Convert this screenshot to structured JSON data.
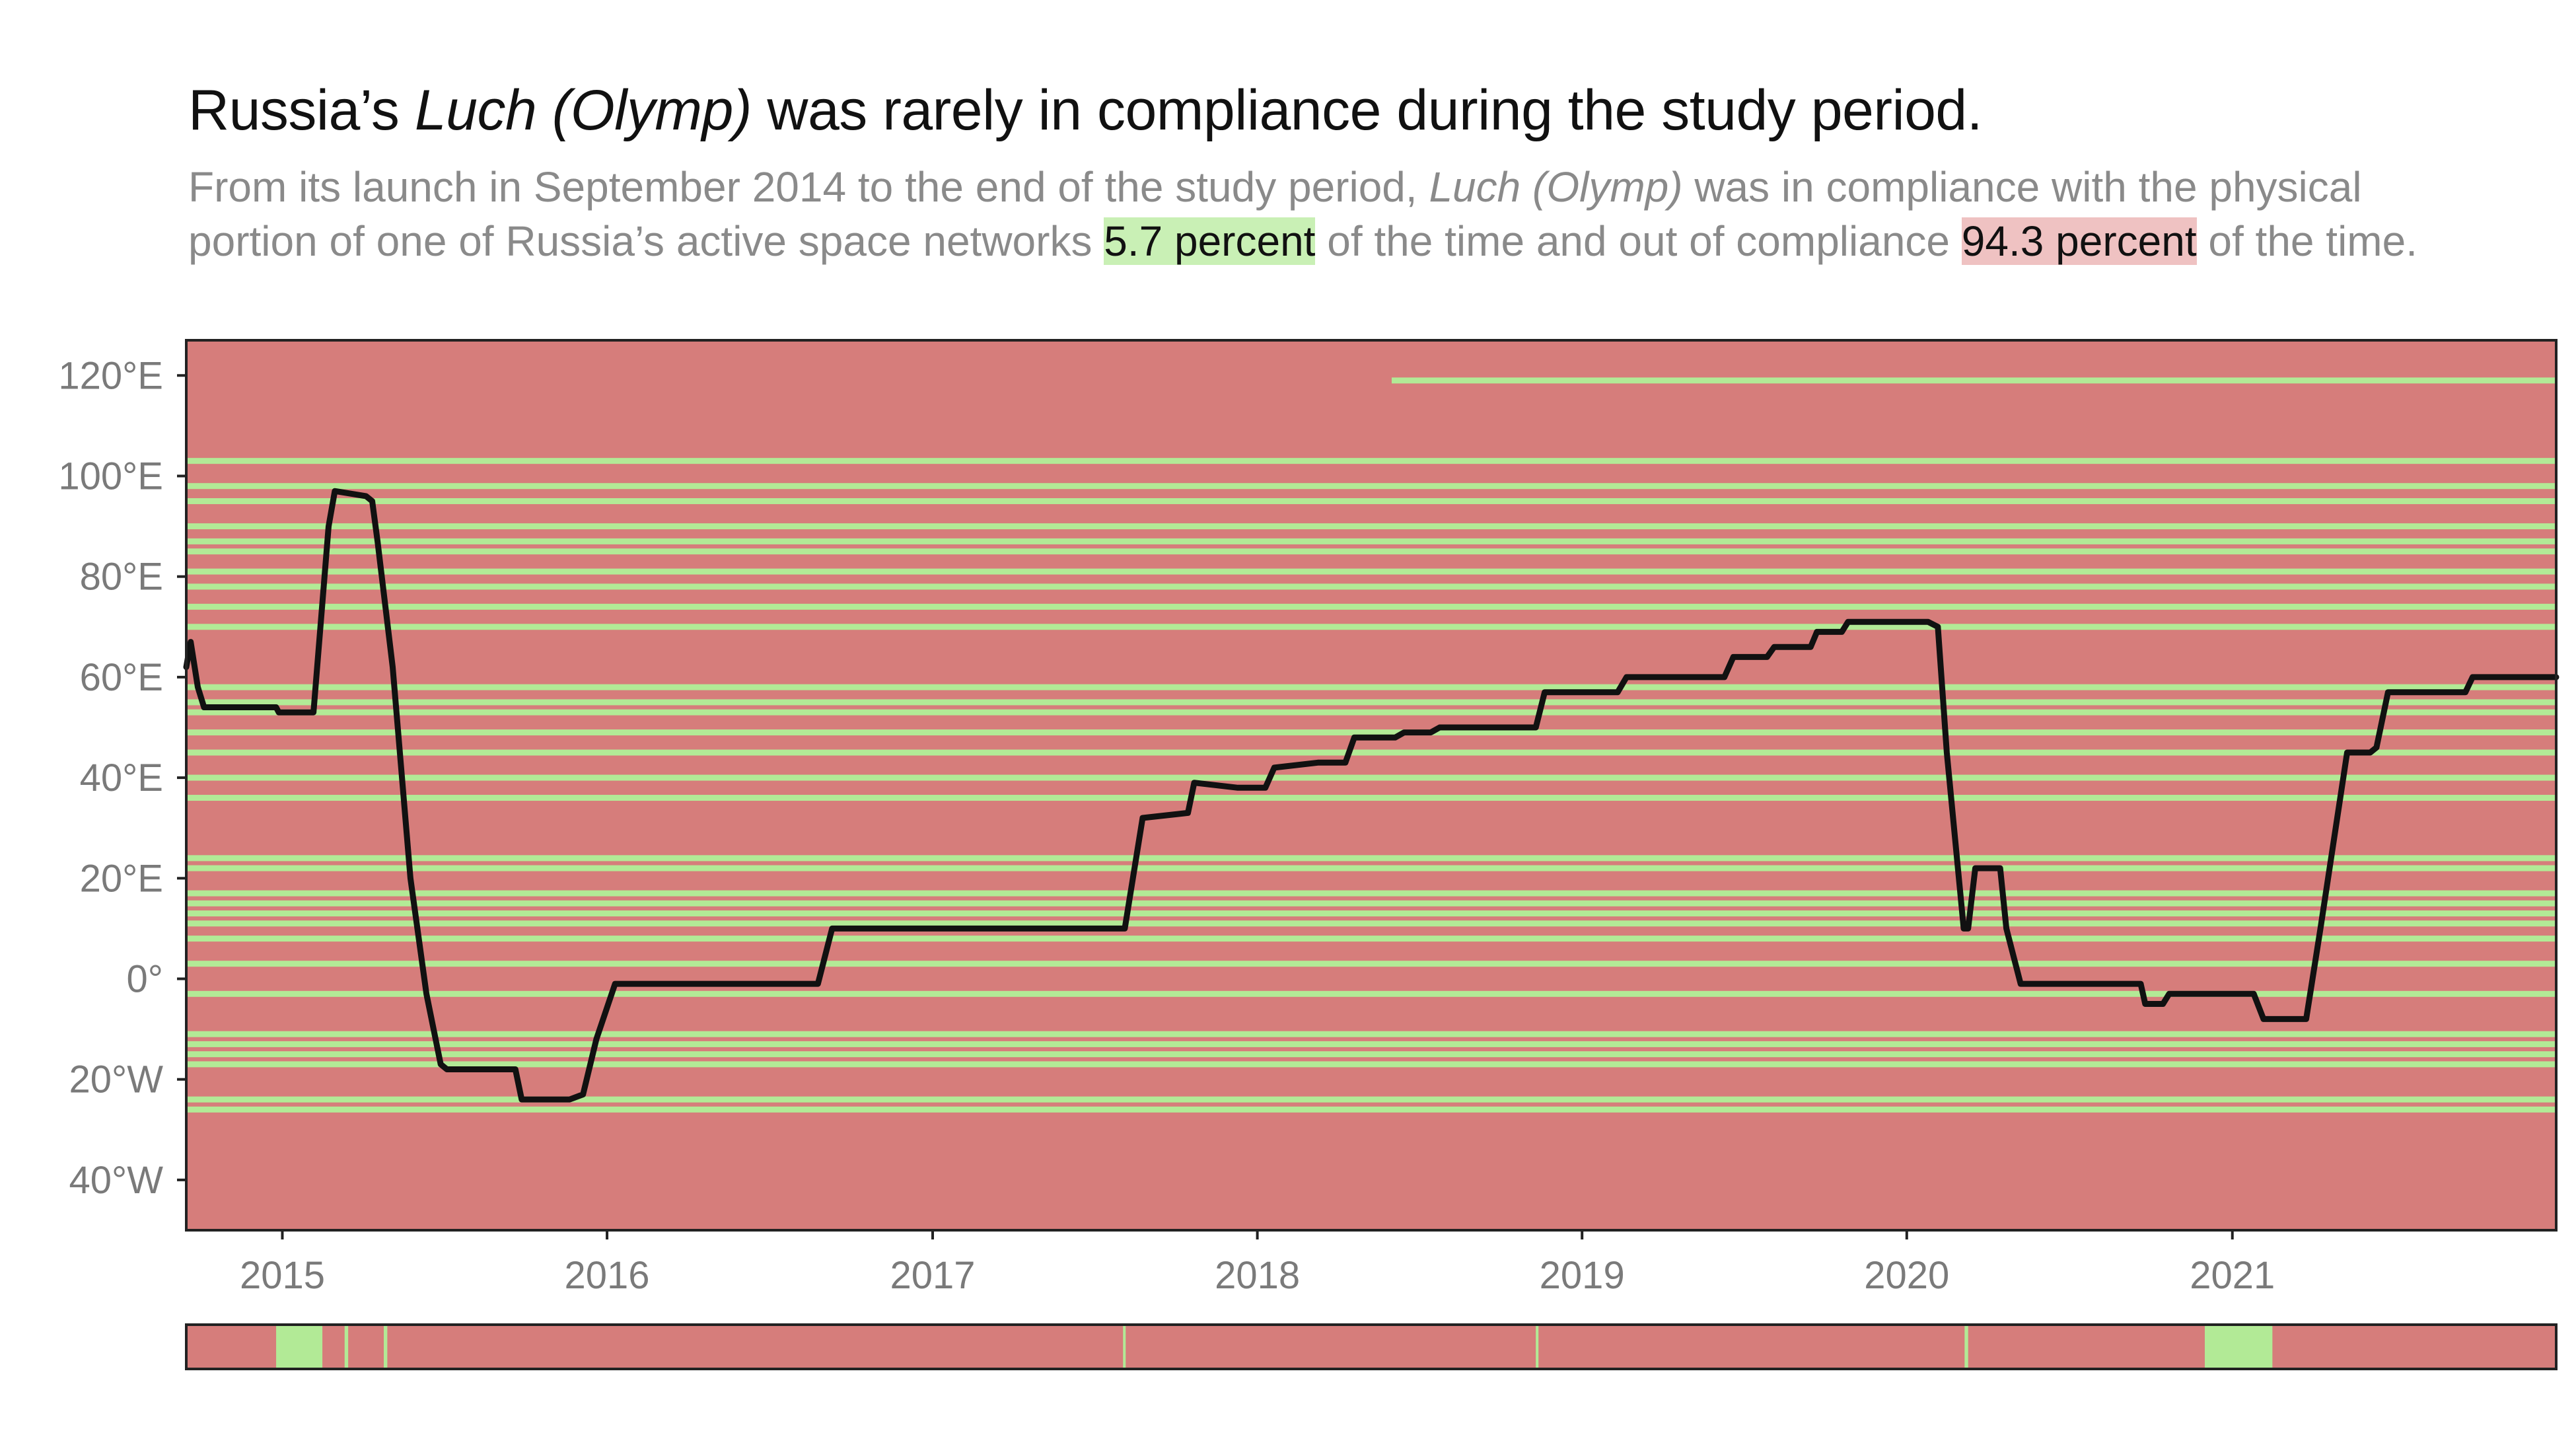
{
  "title": {
    "pre": "Russia’s ",
    "em": "Luch (Olymp)",
    "post": " was rarely in compliance during the study period."
  },
  "subtitle": {
    "line1_pre": "From its launch in September 2014 to the end of the study period, ",
    "line1_em": "Luch (Olymp)",
    "line1_post": " was in compliance with the physical",
    "line2_pre": "portion of one of Russia’s active space networks ",
    "green_label": "5.7 percent",
    "line2_mid": " of the time and out of compliance ",
    "red_label": "94.3 percent",
    "line2_post": " of the time."
  },
  "colors": {
    "compliant": "#b2ea96",
    "noncompliant": "#d67d7b",
    "line": "#111111"
  },
  "chart_data": {
    "type": "line",
    "x_type": "date",
    "xlim": [
      "2014-09-15",
      "2021-12-31"
    ],
    "ylim": [
      -50,
      127
    ],
    "y_unit": "degrees longitude (negative = W)",
    "x_ticks": [
      "2015",
      "2016",
      "2017",
      "2018",
      "2019",
      "2020",
      "2021"
    ],
    "y_ticks": [
      {
        "value": 120,
        "label": "120°E"
      },
      {
        "value": 100,
        "label": "100°E"
      },
      {
        "value": 80,
        "label": "80°E"
      },
      {
        "value": 60,
        "label": "60°E"
      },
      {
        "value": 40,
        "label": "40°E"
      },
      {
        "value": 20,
        "label": "20°E"
      },
      {
        "value": 0,
        "label": "0°"
      },
      {
        "value": -20,
        "label": "20°W"
      },
      {
        "value": -40,
        "label": "40°W"
      }
    ],
    "compliance_bands_longitude": [
      {
        "lon": 119,
        "start": "2018-06-01",
        "end": "2021-12-31"
      },
      {
        "lon": 103,
        "start": "2014-09-15",
        "end": "2021-12-31"
      },
      {
        "lon": 98,
        "start": "2014-09-15",
        "end": "2021-12-31"
      },
      {
        "lon": 95,
        "start": "2014-09-15",
        "end": "2021-12-31"
      },
      {
        "lon": 90,
        "start": "2014-09-15",
        "end": "2021-12-31"
      },
      {
        "lon": 87,
        "start": "2014-09-15",
        "end": "2021-12-31"
      },
      {
        "lon": 85,
        "start": "2014-09-15",
        "end": "2021-12-31"
      },
      {
        "lon": 81,
        "start": "2014-09-15",
        "end": "2021-12-31"
      },
      {
        "lon": 78,
        "start": "2014-09-15",
        "end": "2021-12-31"
      },
      {
        "lon": 74,
        "start": "2014-09-15",
        "end": "2021-12-31"
      },
      {
        "lon": 70,
        "start": "2014-09-15",
        "end": "2021-12-31"
      },
      {
        "lon": 58,
        "start": "2014-09-15",
        "end": "2021-12-31"
      },
      {
        "lon": 55,
        "start": "2014-09-15",
        "end": "2021-12-31"
      },
      {
        "lon": 53,
        "start": "2014-09-15",
        "end": "2021-12-31"
      },
      {
        "lon": 49,
        "start": "2014-09-15",
        "end": "2021-12-31"
      },
      {
        "lon": 45,
        "start": "2014-09-15",
        "end": "2021-12-31"
      },
      {
        "lon": 40,
        "start": "2014-09-15",
        "end": "2021-12-31"
      },
      {
        "lon": 36,
        "start": "2014-09-15",
        "end": "2021-12-31"
      },
      {
        "lon": 24,
        "start": "2014-09-15",
        "end": "2021-12-31"
      },
      {
        "lon": 22,
        "start": "2014-09-15",
        "end": "2021-12-31"
      },
      {
        "lon": 17,
        "start": "2014-09-15",
        "end": "2021-12-31"
      },
      {
        "lon": 15,
        "start": "2014-09-15",
        "end": "2021-12-31"
      },
      {
        "lon": 13,
        "start": "2014-09-15",
        "end": "2021-12-31"
      },
      {
        "lon": 11,
        "start": "2014-09-15",
        "end": "2021-12-31"
      },
      {
        "lon": 8,
        "start": "2014-09-15",
        "end": "2021-12-31"
      },
      {
        "lon": 3,
        "start": "2014-09-15",
        "end": "2021-12-31"
      },
      {
        "lon": -3,
        "start": "2014-09-15",
        "end": "2021-12-31"
      },
      {
        "lon": -11,
        "start": "2014-09-15",
        "end": "2021-12-31"
      },
      {
        "lon": -13,
        "start": "2014-09-15",
        "end": "2021-12-31"
      },
      {
        "lon": -15,
        "start": "2014-09-15",
        "end": "2021-12-31"
      },
      {
        "lon": -17,
        "start": "2014-09-15",
        "end": "2021-12-31"
      },
      {
        "lon": -24,
        "start": "2014-09-15",
        "end": "2021-12-31"
      },
      {
        "lon": -26,
        "start": "2014-09-15",
        "end": "2021-12-31"
      }
    ],
    "series": [
      {
        "x": [
          "2014-09-15",
          "2014-09-20",
          "2014-09-28",
          "2014-10-05",
          "2014-12-01",
          "2014-12-25",
          "2014-12-28",
          "2015-02-05",
          "2015-02-22",
          "2015-03-01",
          "2015-04-05",
          "2015-04-12",
          "2015-04-18",
          "2015-05-05",
          "2015-05-25",
          "2015-06-12",
          "2015-06-28",
          "2015-07-05",
          "2015-07-20",
          "2015-08-15",
          "2015-09-20",
          "2015-09-27",
          "2015-10-20",
          "2015-11-20",
          "2015-12-05",
          "2015-12-20",
          "2016-01-10",
          "2016-01-20",
          "2016-08-25",
          "2016-09-10",
          "2017-08-05",
          "2017-08-25",
          "2017-10-15",
          "2017-10-22",
          "2017-12-10",
          "2018-01-10",
          "2018-01-20",
          "2018-03-10",
          "2018-04-10",
          "2018-04-20",
          "2018-06-05",
          "2018-06-15",
          "2018-07-15",
          "2018-07-25",
          "2018-10-10",
          "2018-11-10",
          "2018-11-20",
          "2019-02-10",
          "2019-02-20",
          "2019-06-10",
          "2019-06-20",
          "2019-07-28",
          "2019-08-05",
          "2019-09-15",
          "2019-09-22",
          "2019-10-20",
          "2019-10-27",
          "2019-11-15",
          "2019-11-22",
          "2020-01-25",
          "2020-02-05",
          "2020-02-15",
          "2020-03-05",
          "2020-03-10",
          "2020-03-18",
          "2020-03-25",
          "2020-04-15",
          "2020-04-22",
          "2020-05-08",
          "2020-05-15",
          "2020-09-20",
          "2020-09-25",
          "2020-10-15",
          "2020-10-22",
          "2021-01-25",
          "2021-02-05",
          "2021-03-25",
          "2021-04-10",
          "2021-05-10",
          "2021-06-05",
          "2021-06-12",
          "2021-06-25",
          "2021-09-20",
          "2021-09-28",
          "2021-12-31"
        ],
        "y": [
          62,
          67,
          58,
          54,
          54,
          54,
          53,
          53,
          90,
          97,
          96,
          95,
          87,
          62,
          20,
          -3,
          -17,
          -18,
          -18,
          -18,
          -18,
          -24,
          -24,
          -24,
          -23,
          -12,
          -1,
          -1,
          -1,
          10,
          10,
          32,
          33,
          39,
          38,
          38,
          42,
          43,
          43,
          48,
          48,
          49,
          49,
          50,
          50,
          50,
          57,
          57,
          60,
          60,
          64,
          64,
          66,
          66,
          69,
          69,
          71,
          71,
          71,
          71,
          70,
          45,
          10,
          10,
          22,
          22,
          22,
          10,
          -1,
          -1,
          -1,
          -5,
          -5,
          -3,
          -3,
          -8,
          -8,
          10,
          45,
          45,
          46,
          57,
          57,
          60,
          60
        ]
      }
    ],
    "compliance_strip": {
      "baseline": "noncompliant",
      "compliant_periods": [
        {
          "start": "2014-12-25",
          "end": "2015-02-15"
        },
        {
          "start": "2015-03-12",
          "end": "2015-03-16"
        },
        {
          "start": "2015-04-25",
          "end": "2015-04-29"
        },
        {
          "start": "2017-08-03",
          "end": "2017-08-06"
        },
        {
          "start": "2018-11-10",
          "end": "2018-11-13"
        },
        {
          "start": "2020-03-06",
          "end": "2020-03-10"
        },
        {
          "start": "2020-12-01",
          "end": "2021-02-15"
        }
      ]
    }
  }
}
